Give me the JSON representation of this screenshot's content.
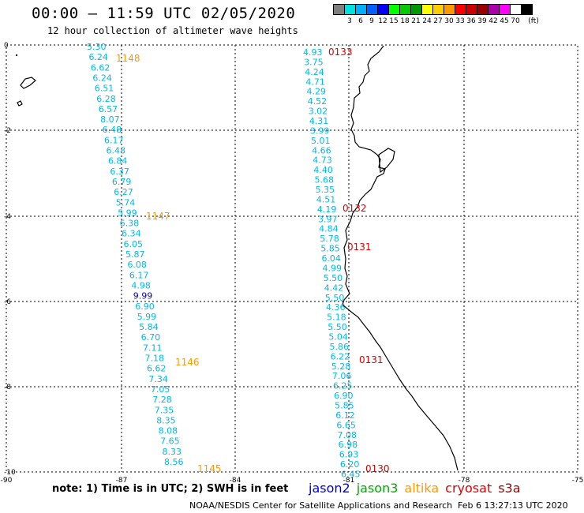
{
  "header": {
    "title": "00:00 – 11:59 UTC 02/05/2020",
    "subtitle": "12 hour collection of altimeter wave heights"
  },
  "legend": {
    "swatches": [
      {
        "color": "#7f7f7f",
        "label": ""
      },
      {
        "color": "#00e0e0",
        "label": "3"
      },
      {
        "color": "#00b0ff",
        "label": "6"
      },
      {
        "color": "#0060ff",
        "label": "9"
      },
      {
        "color": "#0000ff",
        "label": "12"
      },
      {
        "color": "#00ff00",
        "label": "15"
      },
      {
        "color": "#00cc00",
        "label": "18"
      },
      {
        "color": "#009900",
        "label": "21"
      },
      {
        "color": "#ffff00",
        "label": "24"
      },
      {
        "color": "#ffcc00",
        "label": "27"
      },
      {
        "color": "#ff9900",
        "label": "30"
      },
      {
        "color": "#ff0000",
        "label": "33"
      },
      {
        "color": "#cc0000",
        "label": "36"
      },
      {
        "color": "#990000",
        "label": "39"
      },
      {
        "color": "#aa00aa",
        "label": "42"
      },
      {
        "color": "#ff00ff",
        "label": "45"
      },
      {
        "color": "#ffffff",
        "label": "70"
      },
      {
        "color": "#000000",
        "label": ""
      }
    ],
    "unit": "(ft)"
  },
  "axes": {
    "lon_ticks": [
      "-90",
      "-87",
      "-84",
      "-81",
      "-78",
      "-75"
    ],
    "lat_ticks": [
      "0",
      "-2",
      "-4",
      "-6",
      "-8",
      "-10"
    ]
  },
  "tracks": [
    {
      "values": [
        "5.30",
        "6.24",
        "6.62",
        "6.24",
        "6.51",
        "6.28",
        "6.57",
        "8.07",
        "6.48",
        "6.17",
        "6.48",
        "6.84",
        "6.37",
        "6.79",
        "6.27",
        "5.74",
        "5.99",
        "6.38",
        "6.34",
        "6.05",
        "5.87",
        "6.08",
        "6.17",
        "4.98",
        "9.99",
        "6.90",
        "5.99",
        "5.84",
        "6.70",
        "7.11",
        "7.18",
        "6.62",
        "7.34",
        "7.05",
        "7.28",
        "7.35",
        "8.35",
        "8.08",
        "7.65",
        "8.33",
        "8.56"
      ],
      "pass_labels": [
        {
          "text": "1148",
          "color": "#ff9900"
        },
        {
          "text": "1147",
          "color": "#ff9900"
        },
        {
          "text": "1146",
          "color": "#ff9900"
        },
        {
          "text": "1145",
          "color": "#ff9900"
        }
      ]
    },
    {
      "values": [
        "4.93",
        "3.75",
        "4.24",
        "4.71",
        "4.29",
        "4.52",
        "3.02",
        "4.31",
        "3.99",
        "5.01",
        "4.66",
        "4.73",
        "4.40",
        "5.68",
        "5.35",
        "4.51",
        "4.19",
        "3.97",
        "4.84",
        "5.78",
        "5.85",
        "6.04",
        "4.99",
        "5.50",
        "4.42",
        "5.50",
        "4.36",
        "5.18",
        "5.50",
        "5.04",
        "5.86",
        "6.22",
        "5.28",
        "7.06",
        "6.25",
        "6.90",
        "5.85",
        "6.12",
        "6.65",
        "7.08",
        "6.98",
        "6.93",
        "6.20",
        "6.45"
      ],
      "pass_labels": [
        {
          "text": "0133",
          "color": "#dd0000"
        },
        {
          "text": "0132",
          "color": "#dd0000"
        },
        {
          "text": "0131",
          "color": "#dd0000"
        },
        {
          "text": "0131",
          "color": "#dd0000"
        },
        {
          "text": "0130",
          "color": "#dd0000"
        }
      ]
    }
  ],
  "footer": {
    "note": "note: 1) Time is in UTC; 2) SWH is in feet",
    "satellites": [
      {
        "name": "jason2",
        "color": "#0000dd"
      },
      {
        "name": "jason3",
        "color": "#00aa00"
      },
      {
        "name": "altika",
        "color": "#ff9900"
      },
      {
        "name": "cryosat",
        "color": "#dd0000"
      },
      {
        "name": "s3a",
        "color": "#990000"
      }
    ],
    "credit": "NOAA/NESDIS Center for Satellite Applications and Research",
    "timestamp": "Feb  6 13:27:13 UTC 2020"
  }
}
